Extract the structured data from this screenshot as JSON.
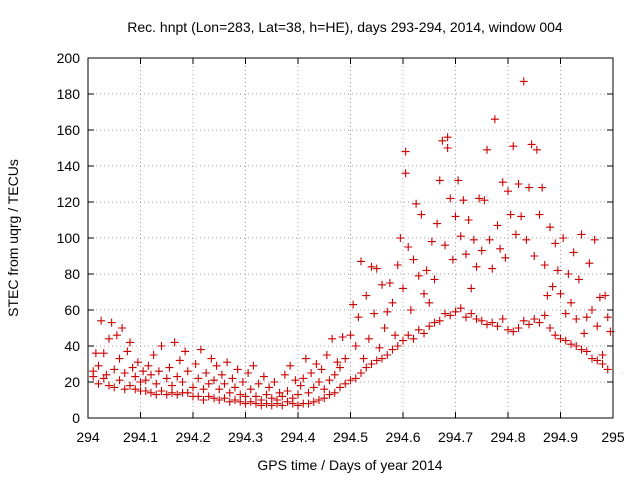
{
  "chart_data": {
    "type": "scatter",
    "title": "Rec. hnpt (Lon=283, Lat=38, h=HE), days 293-294, 2014, window 004",
    "xlabel": "GPS time / Days of year 2014",
    "ylabel": "STEC from uqrg / TECUs",
    "xlim": [
      294,
      295
    ],
    "ylim": [
      0,
      200
    ],
    "grid": true,
    "legend": "none",
    "marker": "plus",
    "x_ticks": [
      {
        "value": 294.0,
        "label": "294"
      },
      {
        "value": 294.1,
        "label": "294.1"
      },
      {
        "value": 294.2,
        "label": "294.2"
      },
      {
        "value": 294.3,
        "label": "294.3"
      },
      {
        "value": 294.4,
        "label": "294.4"
      },
      {
        "value": 294.5,
        "label": "294.5"
      },
      {
        "value": 294.6,
        "label": "294.6"
      },
      {
        "value": 294.7,
        "label": "294.7"
      },
      {
        "value": 294.8,
        "label": "294.8"
      },
      {
        "value": 294.9,
        "label": "294.9"
      },
      {
        "value": 295.0,
        "label": "295"
      }
    ],
    "y_ticks": [
      {
        "value": 0,
        "label": "0"
      },
      {
        "value": 20,
        "label": "20"
      },
      {
        "value": 40,
        "label": "40"
      },
      {
        "value": 60,
        "label": "60"
      },
      {
        "value": 80,
        "label": "80"
      },
      {
        "value": 100,
        "label": "100"
      },
      {
        "value": 120,
        "label": "120"
      },
      {
        "value": 140,
        "label": "140"
      },
      {
        "value": 160,
        "label": "160"
      },
      {
        "value": 180,
        "label": "180"
      },
      {
        "value": 200,
        "label": "200"
      }
    ],
    "series": [
      {
        "color": "#cc0000",
        "points": [
          [
            294.01,
            23
          ],
          [
            294.01,
            26
          ],
          [
            294.015,
            36
          ],
          [
            294.02,
            19
          ],
          [
            294.02,
            29
          ],
          [
            294.025,
            54
          ],
          [
            294.03,
            22
          ],
          [
            294.03,
            36
          ],
          [
            294.035,
            24
          ],
          [
            294.04,
            18
          ],
          [
            294.04,
            44
          ],
          [
            294.045,
            53
          ],
          [
            294.05,
            17
          ],
          [
            294.05,
            27
          ],
          [
            294.055,
            46
          ],
          [
            294.06,
            21
          ],
          [
            294.06,
            33
          ],
          [
            294.065,
            50
          ],
          [
            294.07,
            16
          ],
          [
            294.07,
            25
          ],
          [
            294.075,
            37
          ],
          [
            294.08,
            18
          ],
          [
            294.08,
            42
          ],
          [
            294.085,
            28
          ],
          [
            294.09,
            16
          ],
          [
            294.09,
            23
          ],
          [
            294.095,
            31
          ],
          [
            294.1,
            15
          ],
          [
            294.1,
            20
          ],
          [
            294.105,
            26
          ],
          [
            294.11,
            15
          ],
          [
            294.11,
            21
          ],
          [
            294.115,
            29
          ],
          [
            294.12,
            14
          ],
          [
            294.12,
            24
          ],
          [
            294.125,
            35
          ],
          [
            294.13,
            13
          ],
          [
            294.13,
            19
          ],
          [
            294.135,
            26
          ],
          [
            294.14,
            15
          ],
          [
            294.14,
            40
          ],
          [
            294.15,
            13
          ],
          [
            294.15,
            22
          ],
          [
            294.155,
            28
          ],
          [
            294.16,
            14
          ],
          [
            294.16,
            18
          ],
          [
            294.165,
            42
          ],
          [
            294.17,
            13
          ],
          [
            294.17,
            23
          ],
          [
            294.175,
            32
          ],
          [
            294.18,
            14
          ],
          [
            294.18,
            20
          ],
          [
            294.185,
            37
          ],
          [
            294.19,
            14
          ],
          [
            294.19,
            26
          ],
          [
            294.2,
            12
          ],
          [
            294.2,
            17
          ],
          [
            294.205,
            30
          ],
          [
            294.21,
            12
          ],
          [
            294.21,
            22
          ],
          [
            294.215,
            38
          ],
          [
            294.22,
            10
          ],
          [
            294.22,
            16
          ],
          [
            294.225,
            25
          ],
          [
            294.23,
            12
          ],
          [
            294.23,
            19
          ],
          [
            294.235,
            33
          ],
          [
            294.24,
            11
          ],
          [
            294.24,
            21
          ],
          [
            294.245,
            29
          ],
          [
            294.25,
            10
          ],
          [
            294.25,
            16
          ],
          [
            294.255,
            24
          ],
          [
            294.26,
            11
          ],
          [
            294.26,
            19
          ],
          [
            294.265,
            31
          ],
          [
            294.27,
            9
          ],
          [
            294.27,
            14
          ],
          [
            294.275,
            22
          ],
          [
            294.28,
            10
          ],
          [
            294.28,
            17
          ],
          [
            294.285,
            27
          ],
          [
            294.29,
            9
          ],
          [
            294.29,
            13
          ],
          [
            294.295,
            20
          ],
          [
            294.3,
            8
          ],
          [
            294.3,
            12
          ],
          [
            294.305,
            25
          ],
          [
            294.31,
            9
          ],
          [
            294.31,
            16
          ],
          [
            294.315,
            29
          ],
          [
            294.32,
            8
          ],
          [
            294.32,
            12
          ],
          [
            294.325,
            19
          ],
          [
            294.33,
            7
          ],
          [
            294.33,
            10
          ],
          [
            294.335,
            23
          ],
          [
            294.34,
            8
          ],
          [
            294.34,
            13
          ],
          [
            294.345,
            17
          ],
          [
            294.35,
            7
          ],
          [
            294.35,
            11
          ],
          [
            294.355,
            20
          ],
          [
            294.36,
            8
          ],
          [
            294.36,
            10
          ],
          [
            294.365,
            14
          ],
          [
            294.37,
            7
          ],
          [
            294.37,
            12
          ],
          [
            294.375,
            24
          ],
          [
            294.38,
            9
          ],
          [
            294.38,
            15
          ],
          [
            294.385,
            29
          ],
          [
            294.39,
            8
          ],
          [
            294.39,
            11
          ],
          [
            294.395,
            21
          ],
          [
            294.4,
            7
          ],
          [
            294.4,
            13
          ],
          [
            294.405,
            18
          ],
          [
            294.41,
            8
          ],
          [
            294.41,
            22
          ],
          [
            294.415,
            33
          ],
          [
            294.42,
            8
          ],
          [
            294.42,
            14
          ],
          [
            294.425,
            25
          ],
          [
            294.43,
            9
          ],
          [
            294.43,
            17
          ],
          [
            294.435,
            30
          ],
          [
            294.44,
            10
          ],
          [
            294.44,
            20
          ],
          [
            294.445,
            27
          ],
          [
            294.45,
            11
          ],
          [
            294.45,
            16
          ],
          [
            294.455,
            35
          ],
          [
            294.46,
            13
          ],
          [
            294.46,
            21
          ],
          [
            294.465,
            44
          ],
          [
            294.47,
            14
          ],
          [
            294.47,
            24
          ],
          [
            294.475,
            31
          ],
          [
            294.48,
            17
          ],
          [
            294.48,
            28
          ],
          [
            294.485,
            45
          ],
          [
            294.49,
            19
          ],
          [
            294.49,
            33
          ],
          [
            294.5,
            21
          ],
          [
            294.5,
            46
          ],
          [
            294.505,
            63
          ],
          [
            294.51,
            22
          ],
          [
            294.51,
            40
          ],
          [
            294.515,
            56
          ],
          [
            294.52,
            25
          ],
          [
            294.52,
            87
          ],
          [
            294.525,
            33
          ],
          [
            294.53,
            28
          ],
          [
            294.53,
            68
          ],
          [
            294.535,
            44
          ],
          [
            294.54,
            30
          ],
          [
            294.54,
            84
          ],
          [
            294.545,
            58
          ],
          [
            294.55,
            32
          ],
          [
            294.55,
            83
          ],
          [
            294.555,
            39
          ],
          [
            294.56,
            33
          ],
          [
            294.56,
            74
          ],
          [
            294.565,
            50
          ],
          [
            294.57,
            35
          ],
          [
            294.57,
            59
          ],
          [
            294.575,
            75
          ],
          [
            294.58,
            38
          ],
          [
            294.58,
            64
          ],
          [
            294.585,
            46
          ],
          [
            294.59,
            40
          ],
          [
            294.59,
            85
          ],
          [
            294.595,
            100
          ],
          [
            294.6,
            43
          ],
          [
            294.6,
            72
          ],
          [
            294.605,
            148
          ],
          [
            294.605,
            136
          ],
          [
            294.61,
            46
          ],
          [
            294.61,
            95
          ],
          [
            294.615,
            60
          ],
          [
            294.62,
            44
          ],
          [
            294.62,
            88
          ],
          [
            294.625,
            119
          ],
          [
            294.63,
            49
          ],
          [
            294.63,
            79
          ],
          [
            294.635,
            113
          ],
          [
            294.64,
            47
          ],
          [
            294.64,
            69
          ],
          [
            294.645,
            82
          ],
          [
            294.65,
            51
          ],
          [
            294.65,
            64
          ],
          [
            294.655,
            98
          ],
          [
            294.66,
            53
          ],
          [
            294.66,
            77
          ],
          [
            294.665,
            108
          ],
          [
            294.67,
            54
          ],
          [
            294.67,
            132
          ],
          [
            294.675,
            154
          ],
          [
            294.68,
            58
          ],
          [
            294.68,
            96
          ],
          [
            294.685,
            156
          ],
          [
            294.685,
            150
          ],
          [
            294.69,
            57
          ],
          [
            294.69,
            122
          ],
          [
            294.695,
            88
          ],
          [
            294.7,
            59
          ],
          [
            294.7,
            112
          ],
          [
            294.705,
            132
          ],
          [
            294.71,
            61
          ],
          [
            294.71,
            101
          ],
          [
            294.715,
            121
          ],
          [
            294.72,
            56
          ],
          [
            294.72,
            91
          ],
          [
            294.725,
            110
          ],
          [
            294.73,
            58
          ],
          [
            294.73,
            72
          ],
          [
            294.735,
            99
          ],
          [
            294.74,
            55
          ],
          [
            294.74,
            84
          ],
          [
            294.745,
            122
          ],
          [
            294.75,
            54
          ],
          [
            294.75,
            93
          ],
          [
            294.755,
            121
          ],
          [
            294.76,
            52
          ],
          [
            294.76,
            149
          ],
          [
            294.765,
            99
          ],
          [
            294.77,
            53
          ],
          [
            294.77,
            83
          ],
          [
            294.775,
            166
          ],
          [
            294.78,
            51
          ],
          [
            294.78,
            107
          ],
          [
            294.785,
            94
          ],
          [
            294.79,
            55
          ],
          [
            294.79,
            131
          ],
          [
            294.795,
            89
          ],
          [
            294.8,
            49
          ],
          [
            294.8,
            126
          ],
          [
            294.805,
            113
          ],
          [
            294.81,
            48
          ],
          [
            294.81,
            151
          ],
          [
            294.815,
            102
          ],
          [
            294.82,
            50
          ],
          [
            294.82,
            130
          ],
          [
            294.825,
            112
          ],
          [
            294.83,
            187
          ],
          [
            294.83,
            54
          ],
          [
            294.835,
            99
          ],
          [
            294.84,
            52
          ],
          [
            294.84,
            128
          ],
          [
            294.845,
            152
          ],
          [
            294.85,
            55
          ],
          [
            294.85,
            90
          ],
          [
            294.855,
            149
          ],
          [
            294.86,
            53
          ],
          [
            294.86,
            113
          ],
          [
            294.865,
            128
          ],
          [
            294.87,
            57
          ],
          [
            294.87,
            85
          ],
          [
            294.875,
            68
          ],
          [
            294.88,
            50
          ],
          [
            294.88,
            106
          ],
          [
            294.885,
            73
          ],
          [
            294.89,
            46
          ],
          [
            294.89,
            97
          ],
          [
            294.895,
            82
          ],
          [
            294.9,
            44
          ],
          [
            294.9,
            69
          ],
          [
            294.905,
            100
          ],
          [
            294.91,
            43
          ],
          [
            294.91,
            58
          ],
          [
            294.915,
            80
          ],
          [
            294.92,
            41
          ],
          [
            294.92,
            64
          ],
          [
            294.925,
            92
          ],
          [
            294.93,
            40
          ],
          [
            294.93,
            55
          ],
          [
            294.935,
            77
          ],
          [
            294.94,
            38
          ],
          [
            294.94,
            102
          ],
          [
            294.945,
            47
          ],
          [
            294.95,
            37
          ],
          [
            294.95,
            56
          ],
          [
            294.955,
            86
          ],
          [
            294.96,
            33
          ],
          [
            294.96,
            60
          ],
          [
            294.965,
            99
          ],
          [
            294.97,
            32
          ],
          [
            294.97,
            51
          ],
          [
            294.975,
            67
          ],
          [
            294.98,
            30
          ],
          [
            294.98,
            35
          ],
          [
            294.985,
            68
          ],
          [
            294.99,
            27
          ],
          [
            294.99,
            56
          ],
          [
            294.995,
            48
          ]
        ]
      }
    ]
  }
}
